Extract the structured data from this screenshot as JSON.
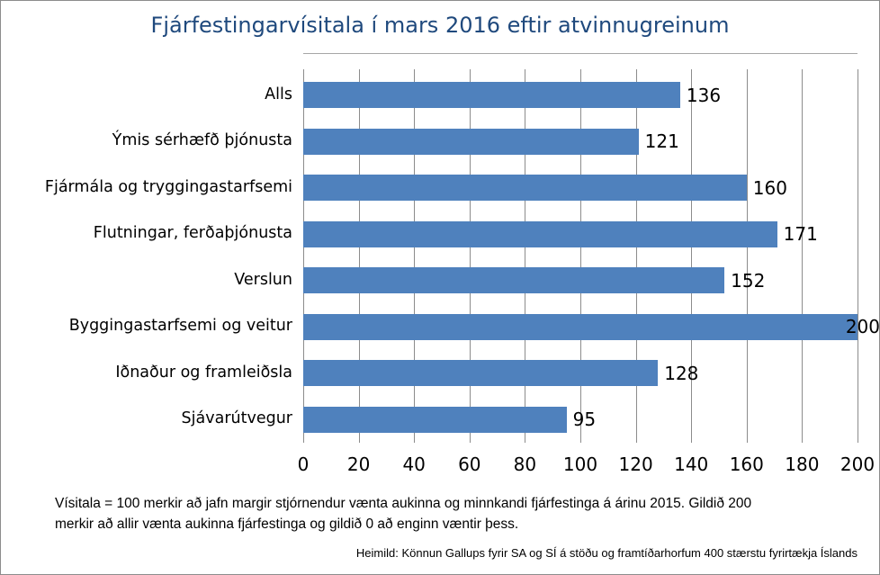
{
  "chart_data": {
    "type": "bar",
    "orientation": "horizontal",
    "title": "Fjárfestingarvísitala í mars 2016 eftir atvinnugreinum",
    "categories": [
      "Alls",
      "Ýmis sérhæfð þjónusta",
      "Fjármála og tryggingastarfsemi",
      "Flutningar, ferðaþjónusta",
      "Verslun",
      "Byggingastarfsemi og veitur",
      "Iðnaður og framleiðsla",
      "Sjávarútvegur"
    ],
    "values": [
      136,
      121,
      160,
      171,
      152,
      200,
      128,
      95
    ],
    "xlabel": "",
    "ylabel": "",
    "xlim": [
      0,
      200
    ],
    "x_ticks": [
      0,
      20,
      40,
      60,
      80,
      100,
      120,
      140,
      160,
      180,
      200
    ],
    "grid": true,
    "data_labels": true,
    "legend": false,
    "bar_color": "#4F81BD",
    "title_color": "#1F497D",
    "gridline_color": "#8C8C8C"
  },
  "footnote": {
    "line1": "Vísitala = 100 merkir að jafn margir stjórnendur vænta aukinna og minnkandi fjárfestinga á árinu 2015. Gildið 200",
    "line2": "merkir að allir vænta aukinna fjárfestinga og gildið 0 að enginn væntir þess."
  },
  "source": "Heimild: Könnun Gallups fyrir SA og SÍ á stöðu og framtíðarhorfum 400 stærstu fyrirtækja Íslands"
}
